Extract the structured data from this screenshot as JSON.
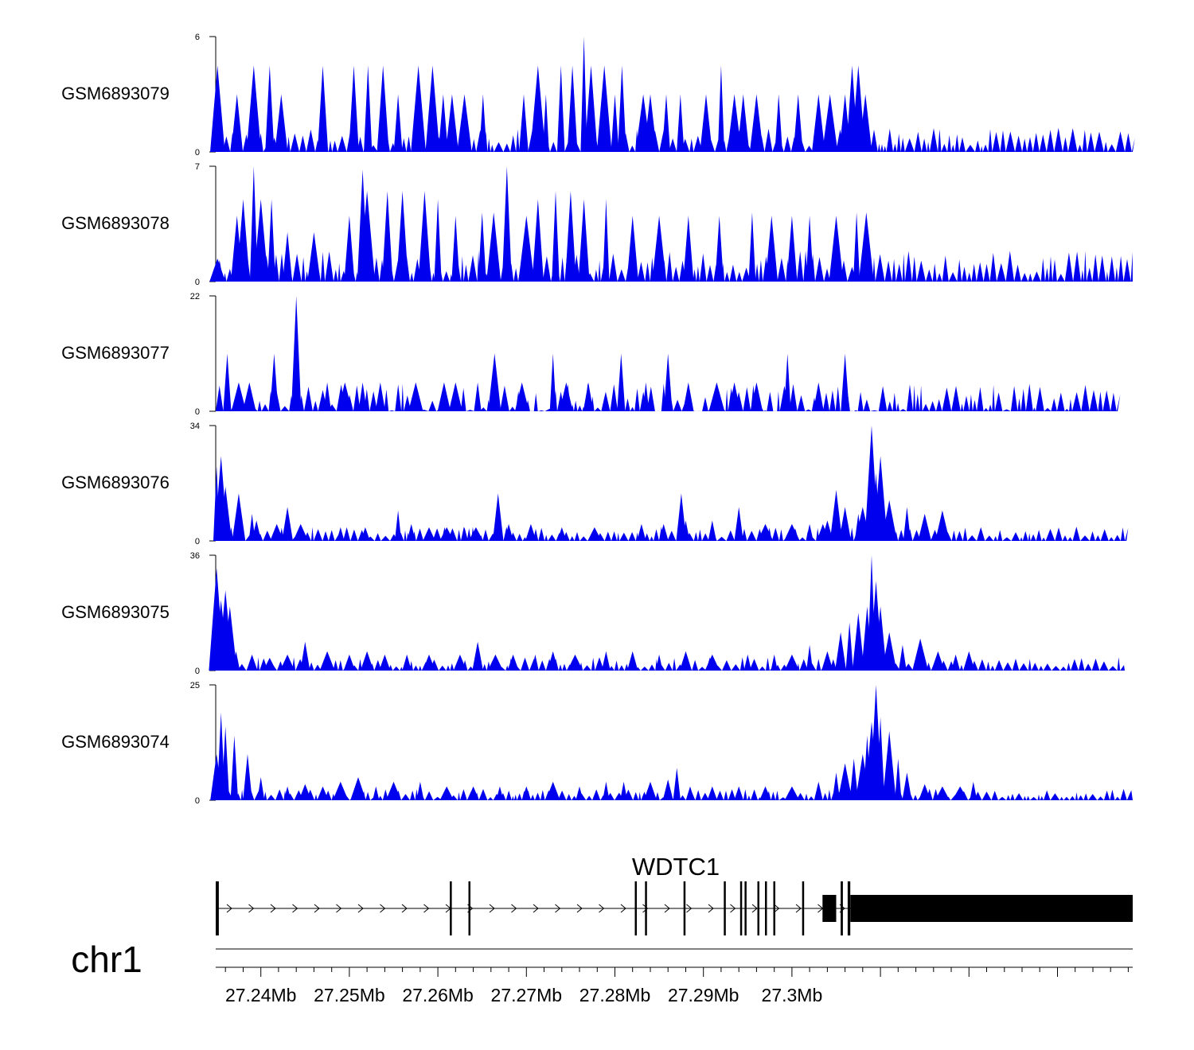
{
  "chart_data": {
    "type": "area",
    "title": "",
    "colors": {
      "signal": "#0000ee",
      "axis": "#000000",
      "gene": "#000000"
    },
    "x_range_mb": [
      27.2349,
      27.3385
    ],
    "tracks": [
      {
        "name": "GSM6893079",
        "ylim": [
          0,
          6
        ],
        "y_ticks": [
          "0",
          "6"
        ],
        "baseline": 0.6,
        "peaks": [
          [
            27.2351,
            4.5
          ],
          [
            27.2373,
            3
          ],
          [
            27.2392,
            4.5
          ],
          [
            27.241,
            4.5
          ],
          [
            27.2423,
            3
          ],
          [
            27.247,
            4.5
          ],
          [
            27.2505,
            4.5
          ],
          [
            27.2521,
            4.5
          ],
          [
            27.2538,
            4.5
          ],
          [
            27.2555,
            3
          ],
          [
            27.2578,
            4.5
          ],
          [
            27.2594,
            4.5
          ],
          [
            27.2606,
            3
          ],
          [
            27.2616,
            3
          ],
          [
            27.263,
            3
          ],
          [
            27.2651,
            3
          ],
          [
            27.2697,
            3
          ],
          [
            27.2713,
            4.5
          ],
          [
            27.2722,
            3
          ],
          [
            27.2739,
            4.5
          ],
          [
            27.2752,
            4.5
          ],
          [
            27.2765,
            6
          ],
          [
            27.2773,
            4.5
          ],
          [
            27.2788,
            4.5
          ],
          [
            27.28,
            3
          ],
          [
            27.2808,
            4.5
          ],
          [
            27.2832,
            3
          ],
          [
            27.284,
            3
          ],
          [
            27.2858,
            3
          ],
          [
            27.2874,
            3
          ],
          [
            27.2903,
            3
          ],
          [
            27.292,
            4.5
          ],
          [
            27.2935,
            3
          ],
          [
            27.2945,
            3
          ],
          [
            27.296,
            3
          ],
          [
            27.2985,
            3
          ],
          [
            27.3007,
            3
          ],
          [
            27.303,
            3
          ],
          [
            27.3043,
            3
          ],
          [
            27.306,
            3
          ],
          [
            27.3068,
            4.5
          ],
          [
            27.3075,
            4.5
          ],
          [
            27.3083,
            3
          ]
        ]
      },
      {
        "name": "GSM6893078",
        "ylim": [
          0,
          7
        ],
        "y_ticks": [
          "0",
          "7"
        ],
        "baseline": 0.9,
        "peaks": [
          [
            27.2351,
            1.4
          ],
          [
            27.2373,
            4
          ],
          [
            27.238,
            5
          ],
          [
            27.2392,
            7
          ],
          [
            27.24,
            5
          ],
          [
            27.2412,
            5
          ],
          [
            27.243,
            3
          ],
          [
            27.246,
            3
          ],
          [
            27.25,
            4
          ],
          [
            27.2515,
            6.8
          ],
          [
            27.252,
            5.5
          ],
          [
            27.2543,
            5.5
          ],
          [
            27.256,
            5.5
          ],
          [
            27.2585,
            5.5
          ],
          [
            27.26,
            5
          ],
          [
            27.262,
            4
          ],
          [
            27.265,
            4.2
          ],
          [
            27.2663,
            4.2
          ],
          [
            27.2678,
            7
          ],
          [
            27.27,
            4
          ],
          [
            27.2713,
            5
          ],
          [
            27.2733,
            5.5
          ],
          [
            27.275,
            5.5
          ],
          [
            27.2765,
            5
          ],
          [
            27.279,
            5
          ],
          [
            27.282,
            4
          ],
          [
            27.285,
            4
          ],
          [
            27.2883,
            4
          ],
          [
            27.2918,
            4
          ],
          [
            27.2955,
            4.2
          ],
          [
            27.2977,
            4
          ],
          [
            27.3,
            4
          ],
          [
            27.302,
            4
          ],
          [
            27.305,
            4
          ],
          [
            27.3073,
            4.2
          ],
          [
            27.3084,
            4.2
          ]
        ]
      },
      {
        "name": "GSM6893077",
        "ylim": [
          0,
          22
        ],
        "y_ticks": [
          "0",
          "22"
        ],
        "baseline": 0,
        "data_end_mb": 27.3368,
        "peaks": [
          [
            27.2362,
            11
          ],
          [
            27.2375,
            5.5
          ],
          [
            27.2387,
            5.5
          ],
          [
            27.2415,
            11
          ],
          [
            27.244,
            22
          ],
          [
            27.2475,
            5.5
          ],
          [
            27.2495,
            5.5
          ],
          [
            27.2515,
            5.5
          ],
          [
            27.2535,
            5.5
          ],
          [
            27.2575,
            5.5
          ],
          [
            27.2607,
            5.5
          ],
          [
            27.262,
            5.5
          ],
          [
            27.2645,
            5.5
          ],
          [
            27.2664,
            11
          ],
          [
            27.2695,
            5.5
          ],
          [
            27.273,
            11
          ],
          [
            27.2745,
            5.5
          ],
          [
            27.277,
            5.5
          ],
          [
            27.2807,
            11
          ],
          [
            27.2835,
            5.5
          ],
          [
            27.286,
            11
          ],
          [
            27.2883,
            5.5
          ],
          [
            27.2915,
            5.5
          ],
          [
            27.2935,
            5.5
          ],
          [
            27.296,
            5.5
          ],
          [
            27.2995,
            11
          ],
          [
            27.303,
            5.5
          ],
          [
            27.306,
            11
          ]
        ]
      },
      {
        "name": "GSM6893076",
        "ylim": [
          0,
          34
        ],
        "y_ticks": [
          "0",
          "34"
        ],
        "baseline": 2,
        "data_end_mb": 27.3378,
        "peaks": [
          [
            27.235,
            22
          ],
          [
            27.2355,
            25
          ],
          [
            27.236,
            16
          ],
          [
            27.2375,
            14
          ],
          [
            27.239,
            8
          ],
          [
            27.2395,
            6
          ],
          [
            27.2418,
            5
          ],
          [
            27.243,
            10
          ],
          [
            27.2445,
            5
          ],
          [
            27.249,
            4
          ],
          [
            27.2518,
            4
          ],
          [
            27.2555,
            9
          ],
          [
            27.257,
            5
          ],
          [
            27.259,
            4
          ],
          [
            27.261,
            4
          ],
          [
            27.263,
            4
          ],
          [
            27.2643,
            4
          ],
          [
            27.2668,
            14
          ],
          [
            27.268,
            5
          ],
          [
            27.2705,
            5
          ],
          [
            27.274,
            4
          ],
          [
            27.2777,
            4
          ],
          [
            27.283,
            5
          ],
          [
            27.2855,
            5
          ],
          [
            27.2875,
            14
          ],
          [
            27.288,
            6
          ],
          [
            27.291,
            6
          ],
          [
            27.294,
            10
          ],
          [
            27.297,
            5
          ],
          [
            27.3,
            5
          ],
          [
            27.302,
            5
          ],
          [
            27.3035,
            5
          ],
          [
            27.304,
            6
          ],
          [
            27.305,
            15
          ],
          [
            27.306,
            10
          ],
          [
            27.3075,
            8
          ],
          [
            27.308,
            10
          ],
          [
            27.309,
            34
          ],
          [
            27.3095,
            20
          ],
          [
            27.31,
            25
          ],
          [
            27.311,
            12
          ],
          [
            27.313,
            10
          ],
          [
            27.315,
            8
          ],
          [
            27.317,
            9
          ]
        ]
      },
      {
        "name": "GSM6893075",
        "ylim": [
          0,
          36
        ],
        "y_ticks": [
          "0",
          "36"
        ],
        "baseline": 2,
        "data_end_mb": 27.3376,
        "peaks": [
          [
            27.235,
            32
          ],
          [
            27.2355,
            22
          ],
          [
            27.236,
            25
          ],
          [
            27.2365,
            20
          ],
          [
            27.2372,
            6
          ],
          [
            27.239,
            5
          ],
          [
            27.241,
            4
          ],
          [
            27.243,
            5
          ],
          [
            27.245,
            9
          ],
          [
            27.2475,
            6
          ],
          [
            27.25,
            5
          ],
          [
            27.252,
            6
          ],
          [
            27.254,
            5
          ],
          [
            27.2565,
            5
          ],
          [
            27.259,
            5
          ],
          [
            27.2625,
            5
          ],
          [
            27.2645,
            9
          ],
          [
            27.2665,
            5
          ],
          [
            27.2685,
            5
          ],
          [
            27.271,
            5
          ],
          [
            27.273,
            6
          ],
          [
            27.2755,
            5
          ],
          [
            27.279,
            6
          ],
          [
            27.282,
            6
          ],
          [
            27.285,
            5
          ],
          [
            27.288,
            6
          ],
          [
            27.291,
            5
          ],
          [
            27.295,
            5
          ],
          [
            27.298,
            5
          ],
          [
            27.3,
            5
          ],
          [
            27.302,
            8
          ],
          [
            27.304,
            6
          ],
          [
            27.3055,
            12
          ],
          [
            27.3065,
            15
          ],
          [
            27.3075,
            18
          ],
          [
            27.3085,
            20
          ],
          [
            27.309,
            36
          ],
          [
            27.3095,
            28
          ],
          [
            27.31,
            20
          ],
          [
            27.311,
            12
          ],
          [
            27.3125,
            8
          ],
          [
            27.3145,
            10
          ],
          [
            27.3165,
            6
          ],
          [
            27.3185,
            5
          ],
          [
            27.32,
            6
          ]
        ]
      },
      {
        "name": "GSM6893074",
        "ylim": [
          0,
          25
        ],
        "y_ticks": [
          "0",
          "25"
        ],
        "baseline": 1.2,
        "peaks": [
          [
            27.235,
            10
          ],
          [
            27.2355,
            19
          ],
          [
            27.236,
            16
          ],
          [
            27.237,
            14
          ],
          [
            27.2385,
            10
          ],
          [
            27.24,
            5
          ],
          [
            27.243,
            3
          ],
          [
            27.245,
            3.5
          ],
          [
            27.247,
            3
          ],
          [
            27.249,
            4
          ],
          [
            27.251,
            5
          ],
          [
            27.253,
            3
          ],
          [
            27.255,
            4
          ],
          [
            27.258,
            4
          ],
          [
            27.261,
            3
          ],
          [
            27.264,
            3
          ],
          [
            27.267,
            3
          ],
          [
            27.27,
            3
          ],
          [
            27.273,
            4
          ],
          [
            27.276,
            3
          ],
          [
            27.279,
            4
          ],
          [
            27.281,
            4
          ],
          [
            27.284,
            4
          ],
          [
            27.286,
            4.5
          ],
          [
            27.287,
            7
          ],
          [
            27.2885,
            3
          ],
          [
            27.291,
            3
          ],
          [
            27.294,
            3
          ],
          [
            27.297,
            3
          ],
          [
            27.3,
            3
          ],
          [
            27.303,
            4
          ],
          [
            27.305,
            6
          ],
          [
            27.306,
            8
          ],
          [
            27.307,
            9
          ],
          [
            27.308,
            10
          ],
          [
            27.3085,
            14
          ],
          [
            27.309,
            17
          ],
          [
            27.3095,
            25
          ],
          [
            27.31,
            18
          ],
          [
            27.311,
            15
          ],
          [
            27.312,
            9
          ],
          [
            27.313,
            6
          ],
          [
            27.315,
            3.5
          ],
          [
            27.317,
            3
          ],
          [
            27.319,
            3
          ],
          [
            27.3205,
            4
          ]
        ]
      }
    ],
    "gene": {
      "name": "WDTC1",
      "strand": "+",
      "start_mb": 27.2349,
      "end_mb": 27.3385,
      "exons_mb": [
        [
          27.2349,
          27.23525
        ],
        [
          27.26135,
          27.2615
        ],
        [
          27.26345,
          27.2636
        ],
        [
          27.28225,
          27.2824
        ],
        [
          27.2834,
          27.2836
        ],
        [
          27.28775,
          27.28795
        ],
        [
          27.2923,
          27.29245
        ],
        [
          27.29415,
          27.2943
        ],
        [
          27.29465,
          27.2948
        ],
        [
          27.2961,
          27.29625
        ],
        [
          27.29695,
          27.2971
        ],
        [
          27.2979,
          27.29805
        ],
        [
          27.30115,
          27.3013
        ],
        [
          27.30345,
          27.305
        ],
        [
          27.3055,
          27.30575
        ],
        [
          27.3063,
          27.3066
        ],
        [
          27.3066,
          27.3385
        ]
      ]
    },
    "chromosome": "chr1",
    "axis": {
      "tick_labels": [
        "27.24Mb",
        "27.25Mb",
        "27.26Mb",
        "27.27Mb",
        "27.28Mb",
        "27.29Mb",
        "27.3Mb"
      ],
      "label_values_mb": [
        27.24,
        27.25,
        27.26,
        27.27,
        27.28,
        27.29,
        27.3
      ],
      "minor_step_mb": 0.002
    }
  }
}
